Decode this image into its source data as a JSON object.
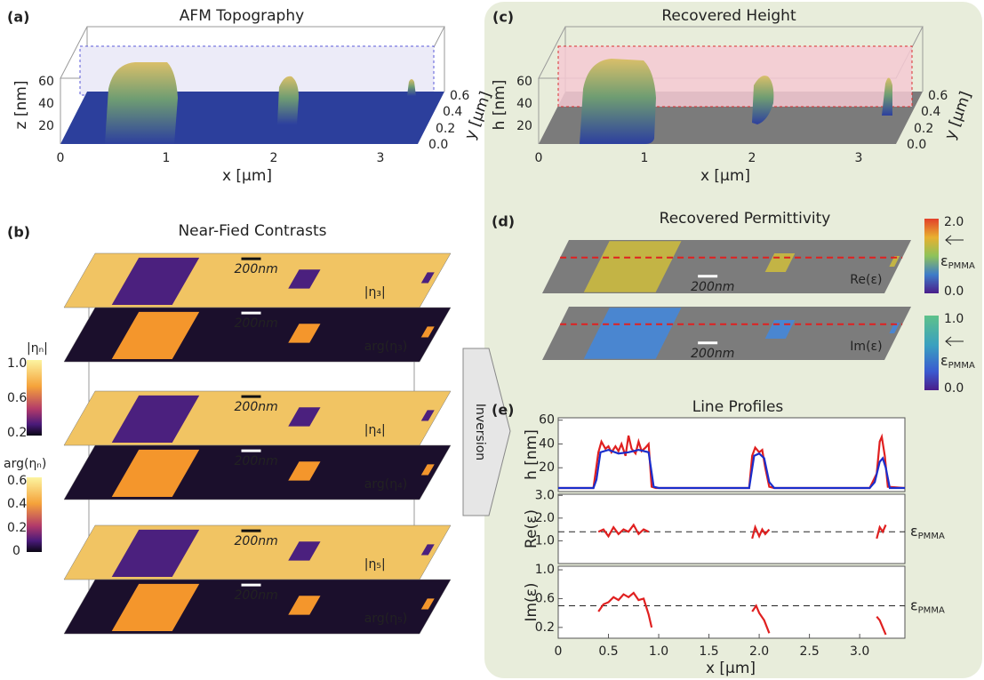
{
  "panel_a": {
    "label": "(a)",
    "title": "AFM Topography",
    "z_label": "z [nm]",
    "z_ticks": [
      "60",
      "40",
      "20"
    ],
    "x_label": "x [μm]",
    "x_ticks": [
      "0",
      "1",
      "2",
      "3"
    ],
    "y_label": "y [μm]",
    "y_ticks": [
      "0.6",
      "0.4",
      "0.2",
      "0.0"
    ]
  },
  "panel_b": {
    "label": "(b)",
    "title": "Near-Fied Contrasts",
    "scale_bar": "200nm",
    "layers": [
      "|η₃|",
      "arg(η₃)",
      "|η₄|",
      "arg(η₄)",
      "|η₅|",
      "arg(η₅)"
    ],
    "colorbars": [
      {
        "label": "|ηₙ|",
        "ticks": [
          "1.0",
          "0.6",
          "0.2"
        ]
      },
      {
        "label": "arg(ηₙ)",
        "ticks": [
          "0.6",
          "0.4",
          "0.2",
          "0"
        ]
      }
    ]
  },
  "arrow": "Inversion",
  "panel_c": {
    "label": "(c)",
    "title": "Recovered Height",
    "z_label": "h [nm]",
    "z_ticks": [
      "60",
      "40",
      "20"
    ],
    "x_label": "x [μm]",
    "x_ticks": [
      "0",
      "1",
      "2",
      "3"
    ],
    "y_label": "y [μm]",
    "y_ticks": [
      "0.6",
      "0.4",
      "0.2",
      "0.0"
    ]
  },
  "panel_d": {
    "label": "(d)",
    "title": "Recovered Permittivity",
    "scale_bar": "200nm",
    "maps": [
      {
        "label": "Re(ε)",
        "colorbar_ticks": [
          "2.0",
          "0.0"
        ]
      },
      {
        "label": "Im(ε)",
        "colorbar_ticks": [
          "1.0",
          "0.0"
        ]
      }
    ],
    "reference": {
      "symbol": "ε",
      "subscript": "PMMA"
    }
  },
  "panel_e": {
    "type": "line",
    "label": "(e)",
    "title": "Line Profiles",
    "x_label": "x [μm]",
    "xlim": [
      0,
      3.45
    ],
    "xticks": [
      0,
      0.5,
      {
        "value": 1,
        "label": "1.0"
      },
      1.5,
      {
        "value": 2,
        "label": "2.0"
      },
      2.5,
      {
        "value": 3,
        "label": "3.0"
      }
    ],
    "plots": [
      {
        "y_label": "h [nm]",
        "ylim": [
          0,
          62
        ],
        "yticks": [
          20,
          40,
          60
        ],
        "series": [
          {
            "color": "#e02020",
            "x": [
              0,
              0.35,
              0.4,
              0.43,
              0.47,
              0.5,
              0.53,
              0.57,
              0.6,
              0.63,
              0.67,
              0.7,
              0.73,
              0.77,
              0.8,
              0.83,
              0.87,
              0.9,
              0.93,
              0.97,
              1.5,
              1.9,
              1.93,
              1.96,
              2.0,
              2.03,
              2.06,
              2.1,
              2.15,
              2.6,
              3.1,
              3.17,
              3.2,
              3.22,
              3.25,
              3.28,
              3.45
            ],
            "values": [
              3,
              3,
              33,
              42,
              36,
              38,
              33,
              38,
              34,
              40,
              30,
              47,
              36,
              32,
              42,
              34,
              37,
              40,
              4,
              3,
              3,
              3,
              30,
              37,
              33,
              35,
              20,
              4,
              3,
              3,
              3,
              15,
              42,
              46,
              30,
              4,
              3
            ]
          },
          {
            "color": "#1a2ecc",
            "x": [
              0,
              0.35,
              0.38,
              0.42,
              0.5,
              0.6,
              0.7,
              0.8,
              0.9,
              0.95,
              1.0,
              1.5,
              1.9,
              1.95,
              2.0,
              2.05,
              2.1,
              2.15,
              2.6,
              3.1,
              3.15,
              3.2,
              3.23,
              3.26,
              3.3,
              3.45
            ],
            "values": [
              3,
              3,
              10,
              33,
              35,
              32,
              33,
              35,
              33,
              4,
              3,
              3,
              3,
              30,
              32,
              28,
              8,
              3,
              3,
              3,
              8,
              25,
              28,
              20,
              3,
              3
            ]
          }
        ]
      },
      {
        "y_label": "Re(ε)",
        "ylim": [
          0,
          3.05
        ],
        "yticks": [
          {
            "value": 1,
            "label": "1.0"
          },
          {
            "value": 2,
            "label": "2.0"
          },
          {
            "value": 3,
            "label": "3.0"
          }
        ],
        "reference": 1.4,
        "series": [
          {
            "color": "#e02020",
            "x": [
              0.4,
              0.45,
              0.5,
              0.55,
              0.6,
              0.65,
              0.7,
              0.75,
              0.8,
              0.85,
              0.9,
              0.92,
              1.93,
              1.96,
              2.0,
              2.03,
              2.06,
              2.1,
              2.12,
              3.17,
              3.2,
              3.23,
              3.26
            ],
            "values": [
              1.4,
              1.5,
              1.2,
              1.6,
              1.3,
              1.5,
              1.4,
              1.7,
              1.3,
              1.5,
              1.4,
              null,
              1.1,
              1.6,
              1.2,
              1.5,
              1.3,
              1.5,
              null,
              1.1,
              1.6,
              1.4,
              1.7
            ]
          }
        ]
      },
      {
        "y_label": "Im(ε)",
        "ylim": [
          0.05,
          1.05
        ],
        "yticks": [
          0.2,
          0.6,
          {
            "value": 1,
            "label": "1.0"
          }
        ],
        "reference": 0.5,
        "series": [
          {
            "color": "#e02020",
            "x": [
              0.4,
              0.45,
              0.5,
              0.55,
              0.6,
              0.65,
              0.7,
              0.75,
              0.8,
              0.85,
              0.9,
              0.93,
              0.95,
              1.93,
              1.97,
              2.0,
              2.05,
              2.1,
              2.12,
              3.17,
              3.2,
              3.23,
              3.26
            ],
            "values": [
              0.42,
              0.52,
              0.55,
              0.62,
              0.58,
              0.66,
              0.62,
              0.68,
              0.58,
              0.6,
              0.38,
              0.2,
              null,
              0.42,
              0.5,
              0.4,
              0.3,
              0.12,
              null,
              0.35,
              0.3,
              0.2,
              0.1
            ]
          }
        ]
      }
    ]
  }
}
